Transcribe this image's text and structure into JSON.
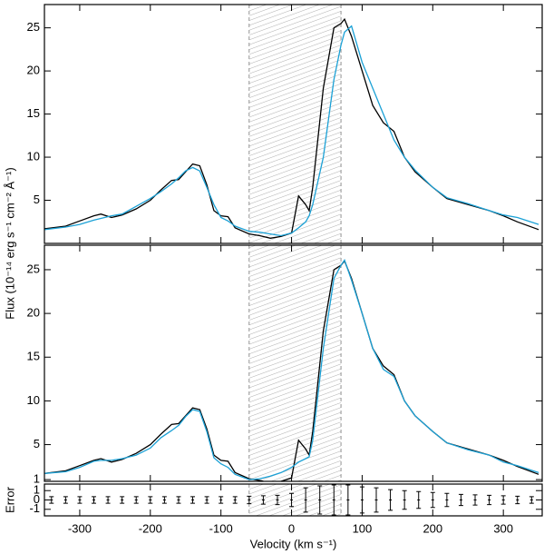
{
  "chart_data": [
    {
      "type": "line",
      "xlim": [
        -350,
        355
      ],
      "ylim": [
        0,
        27.7
      ],
      "yticks": [
        5,
        10,
        15,
        20,
        25
      ],
      "span": [
        -60,
        70
      ],
      "y_label": "Flux (10⁻¹⁴ erg s⁻¹ cm⁻² Å⁻¹)",
      "x": [
        -350,
        -320,
        -300,
        -280,
        -270,
        -255,
        -240,
        -220,
        -200,
        -185,
        -170,
        -160,
        -150,
        -140,
        -130,
        -120,
        -110,
        -100,
        -90,
        -80,
        -60,
        -45,
        -30,
        -15,
        0,
        10,
        20,
        25,
        30,
        45,
        60,
        70,
        75,
        85,
        100,
        115,
        130,
        145,
        160,
        175,
        200,
        220,
        250,
        280,
        300,
        320,
        350
      ],
      "series": [
        {
          "color": "#000000",
          "values": [
            1.7,
            2.0,
            2.6,
            3.2,
            3.4,
            3.0,
            3.3,
            4.0,
            5.0,
            6.2,
            7.3,
            7.4,
            8.3,
            9.2,
            9.0,
            6.8,
            3.8,
            3.2,
            3.1,
            1.8,
            1.1,
            0.9,
            0.6,
            0.8,
            1.2,
            5.5,
            4.5,
            3.8,
            6.5,
            18,
            25,
            25.5,
            26,
            24,
            20,
            16,
            14,
            13,
            10,
            8.3,
            6.5,
            5.2,
            4.5,
            3.8,
            3.2,
            2.5,
            1.6
          ]
        },
        {
          "color": "#1ba1d6",
          "values": [
            1.6,
            1.9,
            2.2,
            2.7,
            2.9,
            3.2,
            3.4,
            4.3,
            5.2,
            6.0,
            6.9,
            7.6,
            8.4,
            8.8,
            8.4,
            6.5,
            4.5,
            3.0,
            2.6,
            2.0,
            1.4,
            1.3,
            1.1,
            0.9,
            1.2,
            1.8,
            2.5,
            3.2,
            4.5,
            10,
            19,
            23,
            24.5,
            25.2,
            21,
            18,
            15,
            12,
            10,
            8.5,
            6.5,
            5.3,
            4.6,
            3.8,
            3.3,
            3.0,
            2.2
          ]
        }
      ]
    },
    {
      "type": "line",
      "xlim": [
        -350,
        355
      ],
      "ylim": [
        0.8,
        27.8
      ],
      "yticks": [
        1,
        5,
        10,
        15,
        20,
        25
      ],
      "span": [
        -60,
        70
      ],
      "x": [
        -350,
        -320,
        -300,
        -280,
        -270,
        -255,
        -240,
        -220,
        -200,
        -185,
        -170,
        -160,
        -150,
        -140,
        -130,
        -120,
        -110,
        -100,
        -90,
        -80,
        -60,
        -45,
        -30,
        -15,
        0,
        10,
        20,
        25,
        30,
        45,
        60,
        70,
        75,
        85,
        100,
        115,
        130,
        145,
        160,
        175,
        200,
        220,
        250,
        280,
        300,
        320,
        350
      ],
      "series": [
        {
          "color": "#000000",
          "values": [
            1.7,
            2.0,
            2.6,
            3.2,
            3.4,
            3.0,
            3.3,
            4.0,
            5.0,
            6.2,
            7.3,
            7.4,
            8.3,
            9.2,
            9.0,
            6.8,
            3.8,
            3.2,
            3.1,
            1.8,
            1.1,
            0.9,
            0.6,
            0.8,
            1.2,
            5.5,
            4.5,
            3.8,
            6.5,
            18,
            25,
            25.5,
            26,
            24,
            20,
            16,
            14,
            13,
            10,
            8.3,
            6.5,
            5.2,
            4.5,
            3.8,
            3.2,
            2.5,
            1.6
          ]
        },
        {
          "color": "#1ba1d6",
          "values": [
            1.7,
            1.9,
            2.4,
            3.1,
            3.2,
            3.2,
            3.4,
            3.8,
            4.6,
            5.8,
            6.6,
            7.2,
            8.2,
            9.0,
            8.8,
            6.5,
            3.5,
            2.8,
            2.4,
            1.6,
            1.0,
            1.1,
            1.4,
            1.8,
            2.4,
            3.0,
            3.4,
            3.6,
            5.5,
            16,
            24,
            25.5,
            26.1,
            23.8,
            20,
            16,
            13.6,
            12.8,
            10,
            8.3,
            6.5,
            5.2,
            4.4,
            3.8,
            3.0,
            2.6,
            1.8
          ]
        }
      ]
    },
    {
      "type": "errorbar",
      "xlim": [
        -350,
        355
      ],
      "ylim": [
        -1.7,
        1.7
      ],
      "yticks": [
        -1,
        0,
        1
      ],
      "span": [
        -60,
        70
      ],
      "y_label": "Error",
      "x_label": "Velocity (km s⁻¹)",
      "xticks": [
        -300,
        -200,
        -100,
        0,
        100,
        200,
        300
      ],
      "x": [
        -340,
        -320,
        -300,
        -280,
        -260,
        -240,
        -220,
        -200,
        -180,
        -160,
        -140,
        -120,
        -100,
        -80,
        -60,
        -40,
        -20,
        0,
        20,
        40,
        60,
        80,
        100,
        120,
        140,
        160,
        180,
        200,
        220,
        240,
        260,
        280,
        300,
        320,
        340
      ],
      "series": [
        {
          "color": "#000000",
          "values": [
            0,
            0,
            0,
            0,
            0,
            0,
            0,
            0,
            0,
            0,
            0,
            0,
            0,
            0,
            0,
            0,
            0,
            0,
            0,
            0,
            0,
            0,
            0,
            0,
            0,
            0,
            0,
            0,
            0,
            0,
            0,
            0,
            0,
            0,
            0
          ],
          "errors": [
            0.35,
            0.35,
            0.35,
            0.35,
            0.35,
            0.35,
            0.35,
            0.35,
            0.35,
            0.35,
            0.35,
            0.35,
            0.35,
            0.35,
            0.4,
            0.45,
            0.5,
            0.7,
            1.3,
            1.5,
            1.6,
            1.6,
            1.4,
            1.3,
            1.1,
            1.0,
            0.9,
            0.8,
            0.7,
            0.6,
            0.55,
            0.5,
            0.45,
            0.4,
            0.35
          ]
        }
      ]
    }
  ]
}
